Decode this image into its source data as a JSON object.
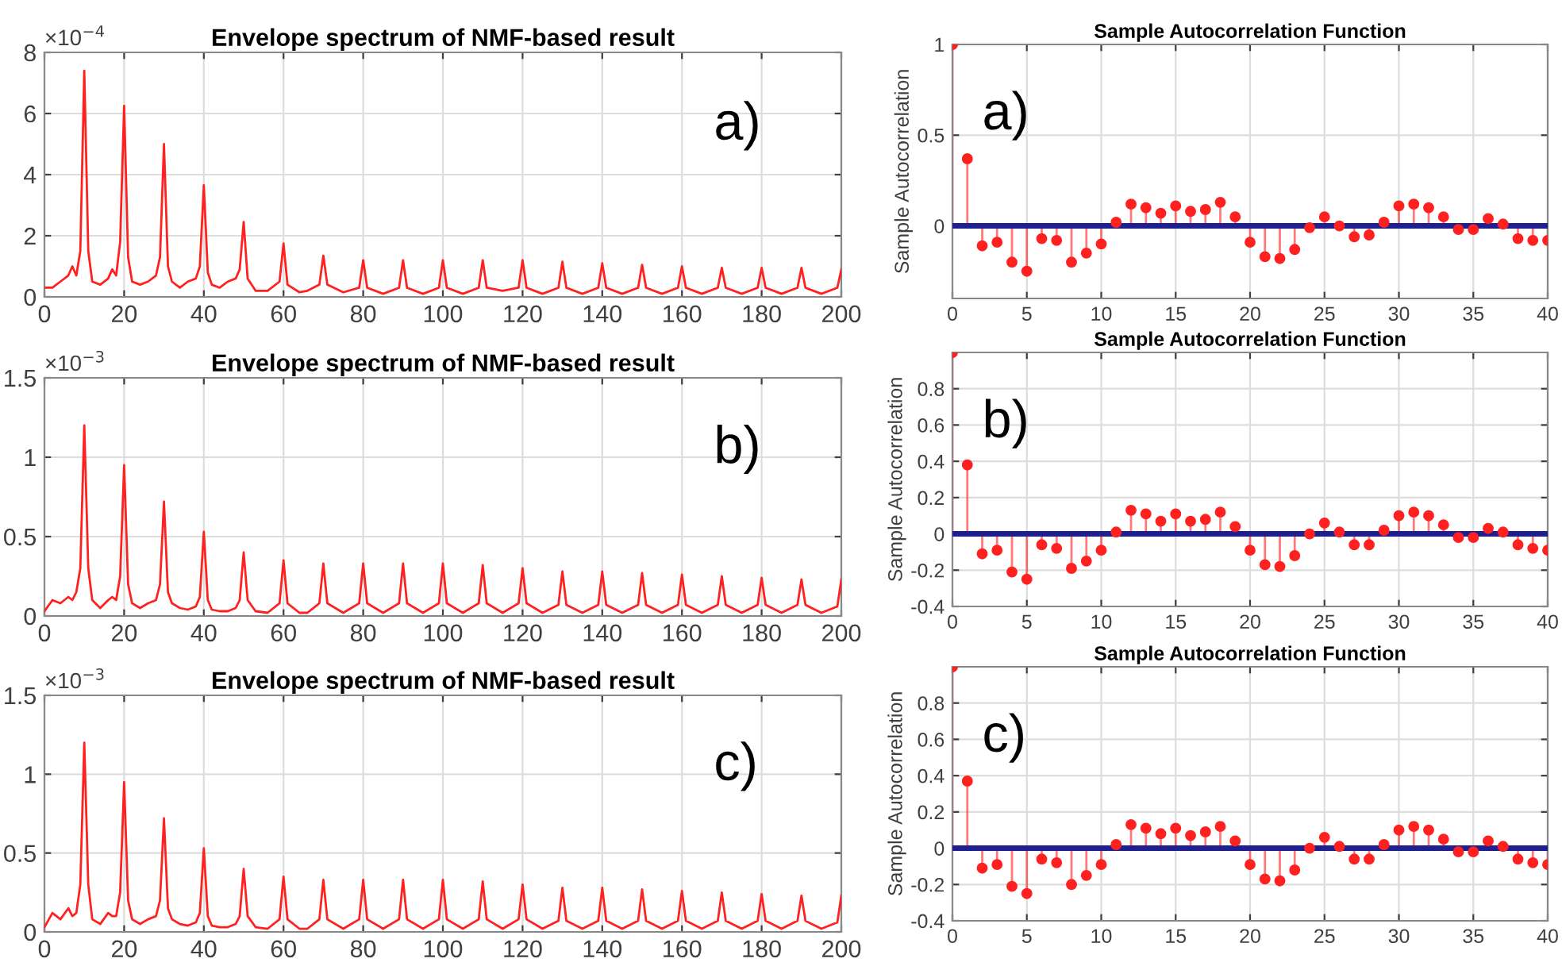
{
  "chart_data": [
    {
      "type": "line",
      "title": "Envelope spectrum of NMF-based result",
      "annotations": [
        "×10$^{−4}$",
        "a)"
      ],
      "grid": true,
      "xlim": [
        0,
        200
      ],
      "xticks": [
        0,
        20,
        40,
        60,
        80,
        100,
        120,
        140,
        160,
        180,
        200
      ],
      "ylim": [
        0,
        8
      ],
      "yticks": [
        0,
        2,
        4,
        6,
        8
      ],
      "x": [
        0,
        2,
        4,
        6,
        7,
        8,
        9,
        10,
        11,
        12,
        14,
        16,
        17,
        18,
        19,
        20,
        21,
        22,
        24,
        26,
        28,
        29,
        30,
        31,
        32,
        34,
        36,
        38,
        39,
        40,
        41,
        42,
        44,
        46,
        48,
        49,
        50,
        51,
        53,
        56,
        59,
        60,
        61,
        64,
        66,
        69,
        70,
        71,
        75,
        79,
        80,
        81,
        85,
        89,
        90,
        91,
        95,
        99,
        100,
        101,
        105,
        109,
        110,
        111,
        115,
        119,
        120,
        121,
        125,
        129,
        130,
        131,
        135,
        139,
        140,
        141,
        145,
        149,
        150,
        151,
        155,
        159,
        160,
        161,
        165,
        169,
        170,
        171,
        175,
        179,
        180,
        181,
        185,
        189,
        190,
        191,
        195,
        199,
        200
      ],
      "series": [
        {
          "color": "#ff2020",
          "values": [
            0.3,
            0.3,
            0.5,
            0.7,
            1.0,
            0.7,
            1.5,
            7.4,
            1.5,
            0.5,
            0.4,
            0.6,
            0.9,
            0.7,
            1.8,
            6.25,
            1.3,
            0.5,
            0.4,
            0.5,
            0.7,
            1.3,
            5.0,
            1.0,
            0.5,
            0.3,
            0.5,
            0.6,
            1.0,
            3.65,
            0.8,
            0.4,
            0.3,
            0.5,
            0.6,
            0.9,
            2.45,
            0.6,
            0.2,
            0.2,
            0.5,
            1.75,
            0.4,
            0.15,
            0.2,
            0.4,
            1.35,
            0.4,
            0.15,
            0.3,
            1.2,
            0.3,
            0.1,
            0.3,
            1.2,
            0.3,
            0.1,
            0.3,
            1.2,
            0.3,
            0.1,
            0.3,
            1.2,
            0.3,
            0.2,
            0.3,
            1.2,
            0.3,
            0.1,
            0.3,
            1.15,
            0.3,
            0.1,
            0.3,
            1.1,
            0.3,
            0.1,
            0.3,
            1.05,
            0.3,
            0.1,
            0.3,
            1.0,
            0.3,
            0.1,
            0.3,
            0.95,
            0.3,
            0.1,
            0.3,
            0.95,
            0.3,
            0.1,
            0.3,
            0.95,
            0.3,
            0.1,
            0.3,
            0.9
          ]
        }
      ]
    },
    {
      "type": "lollipop",
      "title": "Sample Autocorrelation Function",
      "ylabel": "Sample Autocorrelation",
      "annotations": [
        "a)"
      ],
      "grid": true,
      "marker": "circle",
      "xlim": [
        0,
        40
      ],
      "xticks": [
        0,
        5,
        10,
        15,
        20,
        25,
        30,
        35,
        40
      ],
      "ylim": [
        -0.4,
        1
      ],
      "yticks": [
        0,
        0.5,
        1
      ],
      "x": [
        0,
        1,
        2,
        3,
        4,
        5,
        6,
        7,
        8,
        9,
        10,
        11,
        12,
        13,
        14,
        15,
        16,
        17,
        18,
        19,
        20,
        21,
        22,
        23,
        24,
        25,
        26,
        27,
        28,
        29,
        30,
        31,
        32,
        33,
        34,
        35,
        36,
        37,
        38,
        39,
        40
      ],
      "ref_lines": [
        {
          "axis": "y",
          "value": 0,
          "color": "#1f1f8f"
        }
      ],
      "series": [
        {
          "color": "#ff2020",
          "values": [
            1,
            0.37,
            -0.11,
            -0.09,
            -0.2,
            -0.25,
            -0.07,
            -0.08,
            -0.2,
            -0.15,
            -0.1,
            0.02,
            0.12,
            0.1,
            0.07,
            0.11,
            0.08,
            0.09,
            0.13,
            0.05,
            -0.09,
            -0.17,
            -0.18,
            -0.13,
            -0.01,
            0.05,
            0.0,
            -0.06,
            -0.05,
            0.02,
            0.11,
            0.12,
            0.1,
            0.05,
            -0.02,
            -0.02,
            0.04,
            0.01,
            -0.07,
            -0.08,
            -0.08
          ]
        }
      ]
    },
    {
      "type": "line",
      "title": "Envelope spectrum of NMF-based result",
      "annotations": [
        "×10$^{−3}$",
        "b)"
      ],
      "grid": true,
      "xlim": [
        0,
        200
      ],
      "xticks": [
        0,
        20,
        40,
        60,
        80,
        100,
        120,
        140,
        160,
        180,
        200
      ],
      "ylim": [
        0,
        1.5
      ],
      "yticks": [
        0,
        0.5,
        1,
        1.5
      ],
      "x": [
        0,
        2,
        4,
        6,
        7,
        8,
        9,
        10,
        11,
        12,
        14,
        16,
        17,
        18,
        19,
        20,
        21,
        22,
        24,
        26,
        28,
        29,
        30,
        31,
        32,
        34,
        36,
        38,
        39,
        40,
        41,
        42,
        44,
        46,
        48,
        49,
        50,
        51,
        53,
        56,
        59,
        60,
        61,
        64,
        66,
        69,
        70,
        71,
        75,
        79,
        80,
        81,
        85,
        89,
        90,
        91,
        95,
        99,
        100,
        101,
        105,
        109,
        110,
        111,
        115,
        119,
        120,
        121,
        125,
        129,
        130,
        131,
        135,
        139,
        140,
        141,
        145,
        149,
        150,
        151,
        155,
        159,
        160,
        161,
        165,
        169,
        170,
        171,
        175,
        179,
        180,
        181,
        185,
        189,
        190,
        191,
        195,
        199,
        200
      ],
      "series": [
        {
          "color": "#ff2020",
          "values": [
            0.03,
            0.1,
            0.08,
            0.12,
            0.1,
            0.15,
            0.3,
            1.2,
            0.3,
            0.1,
            0.05,
            0.1,
            0.12,
            0.1,
            0.25,
            0.95,
            0.2,
            0.08,
            0.05,
            0.08,
            0.1,
            0.2,
            0.72,
            0.15,
            0.08,
            0.05,
            0.04,
            0.06,
            0.12,
            0.53,
            0.1,
            0.04,
            0.03,
            0.03,
            0.05,
            0.1,
            0.4,
            0.1,
            0.03,
            0.02,
            0.08,
            0.35,
            0.08,
            0.02,
            0.02,
            0.08,
            0.33,
            0.08,
            0.02,
            0.08,
            0.33,
            0.08,
            0.02,
            0.08,
            0.33,
            0.08,
            0.02,
            0.08,
            0.33,
            0.08,
            0.02,
            0.08,
            0.32,
            0.08,
            0.02,
            0.08,
            0.3,
            0.08,
            0.02,
            0.07,
            0.28,
            0.07,
            0.02,
            0.07,
            0.28,
            0.07,
            0.02,
            0.07,
            0.27,
            0.07,
            0.02,
            0.07,
            0.26,
            0.07,
            0.02,
            0.07,
            0.25,
            0.07,
            0.02,
            0.07,
            0.24,
            0.07,
            0.02,
            0.07,
            0.23,
            0.07,
            0.02,
            0.06,
            0.23
          ]
        }
      ]
    },
    {
      "type": "lollipop",
      "title": "Sample Autocorrelation Function",
      "ylabel": "Sample Autocorrelation",
      "annotations": [
        "b)"
      ],
      "grid": true,
      "marker": "circle",
      "xlim": [
        0,
        40
      ],
      "xticks": [
        0,
        5,
        10,
        15,
        20,
        25,
        30,
        35,
        40
      ],
      "ylim": [
        -0.4,
        1
      ],
      "yticks": [
        -0.4,
        -0.2,
        0,
        0.2,
        0.4,
        0.6,
        0.8
      ],
      "x": [
        0,
        1,
        2,
        3,
        4,
        5,
        6,
        7,
        8,
        9,
        10,
        11,
        12,
        13,
        14,
        15,
        16,
        17,
        18,
        19,
        20,
        21,
        22,
        23,
        24,
        25,
        26,
        27,
        28,
        29,
        30,
        31,
        32,
        33,
        34,
        35,
        36,
        37,
        38,
        39,
        40
      ],
      "ref_lines": [
        {
          "axis": "y",
          "value": 0,
          "color": "#1f1f8f"
        }
      ],
      "series": [
        {
          "color": "#ff2020",
          "values": [
            1,
            0.38,
            -0.11,
            -0.09,
            -0.21,
            -0.25,
            -0.06,
            -0.08,
            -0.19,
            -0.15,
            -0.09,
            0.01,
            0.13,
            0.11,
            0.07,
            0.11,
            0.07,
            0.08,
            0.12,
            0.04,
            -0.09,
            -0.17,
            -0.18,
            -0.12,
            0.0,
            0.06,
            0.01,
            -0.06,
            -0.06,
            0.02,
            0.1,
            0.12,
            0.1,
            0.05,
            -0.02,
            -0.02,
            0.03,
            0.01,
            -0.06,
            -0.08,
            -0.09
          ]
        }
      ]
    },
    {
      "type": "line",
      "title": "Envelope spectrum of NMF-based result",
      "annotations": [
        "×10$^{−3}$",
        "c)"
      ],
      "grid": true,
      "xlim": [
        0,
        200
      ],
      "xticks": [
        0,
        20,
        40,
        60,
        80,
        100,
        120,
        140,
        160,
        180,
        200
      ],
      "ylim": [
        0,
        1.5
      ],
      "yticks": [
        0,
        0.5,
        1,
        1.5
      ],
      "x": [
        0,
        2,
        4,
        6,
        7,
        8,
        9,
        10,
        11,
        12,
        14,
        16,
        17,
        18,
        19,
        20,
        21,
        22,
        24,
        26,
        28,
        29,
        30,
        31,
        32,
        34,
        36,
        38,
        39,
        40,
        41,
        42,
        44,
        46,
        48,
        49,
        50,
        51,
        53,
        56,
        59,
        60,
        61,
        64,
        66,
        69,
        70,
        71,
        75,
        79,
        80,
        81,
        85,
        89,
        90,
        91,
        95,
        99,
        100,
        101,
        105,
        109,
        110,
        111,
        115,
        119,
        120,
        121,
        125,
        129,
        130,
        131,
        135,
        139,
        140,
        141,
        145,
        149,
        150,
        151,
        155,
        159,
        160,
        161,
        165,
        169,
        170,
        171,
        175,
        179,
        180,
        181,
        185,
        189,
        190,
        191,
        195,
        199,
        200
      ],
      "series": [
        {
          "color": "#ff2020",
          "values": [
            0.03,
            0.12,
            0.08,
            0.15,
            0.1,
            0.12,
            0.3,
            1.2,
            0.3,
            0.08,
            0.05,
            0.12,
            0.1,
            0.1,
            0.25,
            0.95,
            0.2,
            0.08,
            0.05,
            0.08,
            0.1,
            0.2,
            0.72,
            0.15,
            0.08,
            0.05,
            0.04,
            0.06,
            0.12,
            0.53,
            0.1,
            0.04,
            0.03,
            0.03,
            0.05,
            0.1,
            0.4,
            0.1,
            0.03,
            0.02,
            0.08,
            0.35,
            0.08,
            0.02,
            0.02,
            0.08,
            0.33,
            0.08,
            0.02,
            0.08,
            0.33,
            0.08,
            0.02,
            0.08,
            0.33,
            0.08,
            0.02,
            0.08,
            0.33,
            0.08,
            0.02,
            0.08,
            0.32,
            0.08,
            0.02,
            0.08,
            0.3,
            0.08,
            0.02,
            0.07,
            0.28,
            0.07,
            0.02,
            0.07,
            0.28,
            0.07,
            0.02,
            0.07,
            0.27,
            0.07,
            0.02,
            0.07,
            0.26,
            0.07,
            0.02,
            0.07,
            0.25,
            0.07,
            0.02,
            0.07,
            0.24,
            0.07,
            0.02,
            0.07,
            0.23,
            0.07,
            0.02,
            0.06,
            0.23
          ]
        }
      ]
    },
    {
      "type": "lollipop",
      "title": "Sample Autocorrelation Function",
      "ylabel": "Sample Autocorrelation",
      "annotations": [
        "c)"
      ],
      "grid": true,
      "marker": "circle",
      "xlim": [
        0,
        40
      ],
      "xticks": [
        0,
        5,
        10,
        15,
        20,
        25,
        30,
        35,
        40
      ],
      "ylim": [
        -0.4,
        1
      ],
      "yticks": [
        -0.4,
        -0.2,
        0,
        0.2,
        0.4,
        0.6,
        0.8
      ],
      "x": [
        0,
        1,
        2,
        3,
        4,
        5,
        6,
        7,
        8,
        9,
        10,
        11,
        12,
        13,
        14,
        15,
        16,
        17,
        18,
        19,
        20,
        21,
        22,
        23,
        24,
        25,
        26,
        27,
        28,
        29,
        30,
        31,
        32,
        33,
        34,
        35,
        36,
        37,
        38,
        39,
        40
      ],
      "ref_lines": [
        {
          "axis": "y",
          "value": 0,
          "color": "#1f1f8f"
        }
      ],
      "series": [
        {
          "color": "#ff2020",
          "values": [
            1,
            0.37,
            -0.11,
            -0.09,
            -0.21,
            -0.25,
            -0.06,
            -0.08,
            -0.2,
            -0.15,
            -0.09,
            0.02,
            0.13,
            0.11,
            0.08,
            0.11,
            0.07,
            0.09,
            0.12,
            0.04,
            -0.09,
            -0.17,
            -0.18,
            -0.12,
            0.0,
            0.06,
            0.01,
            -0.06,
            -0.06,
            0.02,
            0.1,
            0.12,
            0.1,
            0.05,
            -0.02,
            -0.02,
            0.04,
            0.01,
            -0.06,
            -0.08,
            -0.09
          ]
        }
      ]
    }
  ]
}
